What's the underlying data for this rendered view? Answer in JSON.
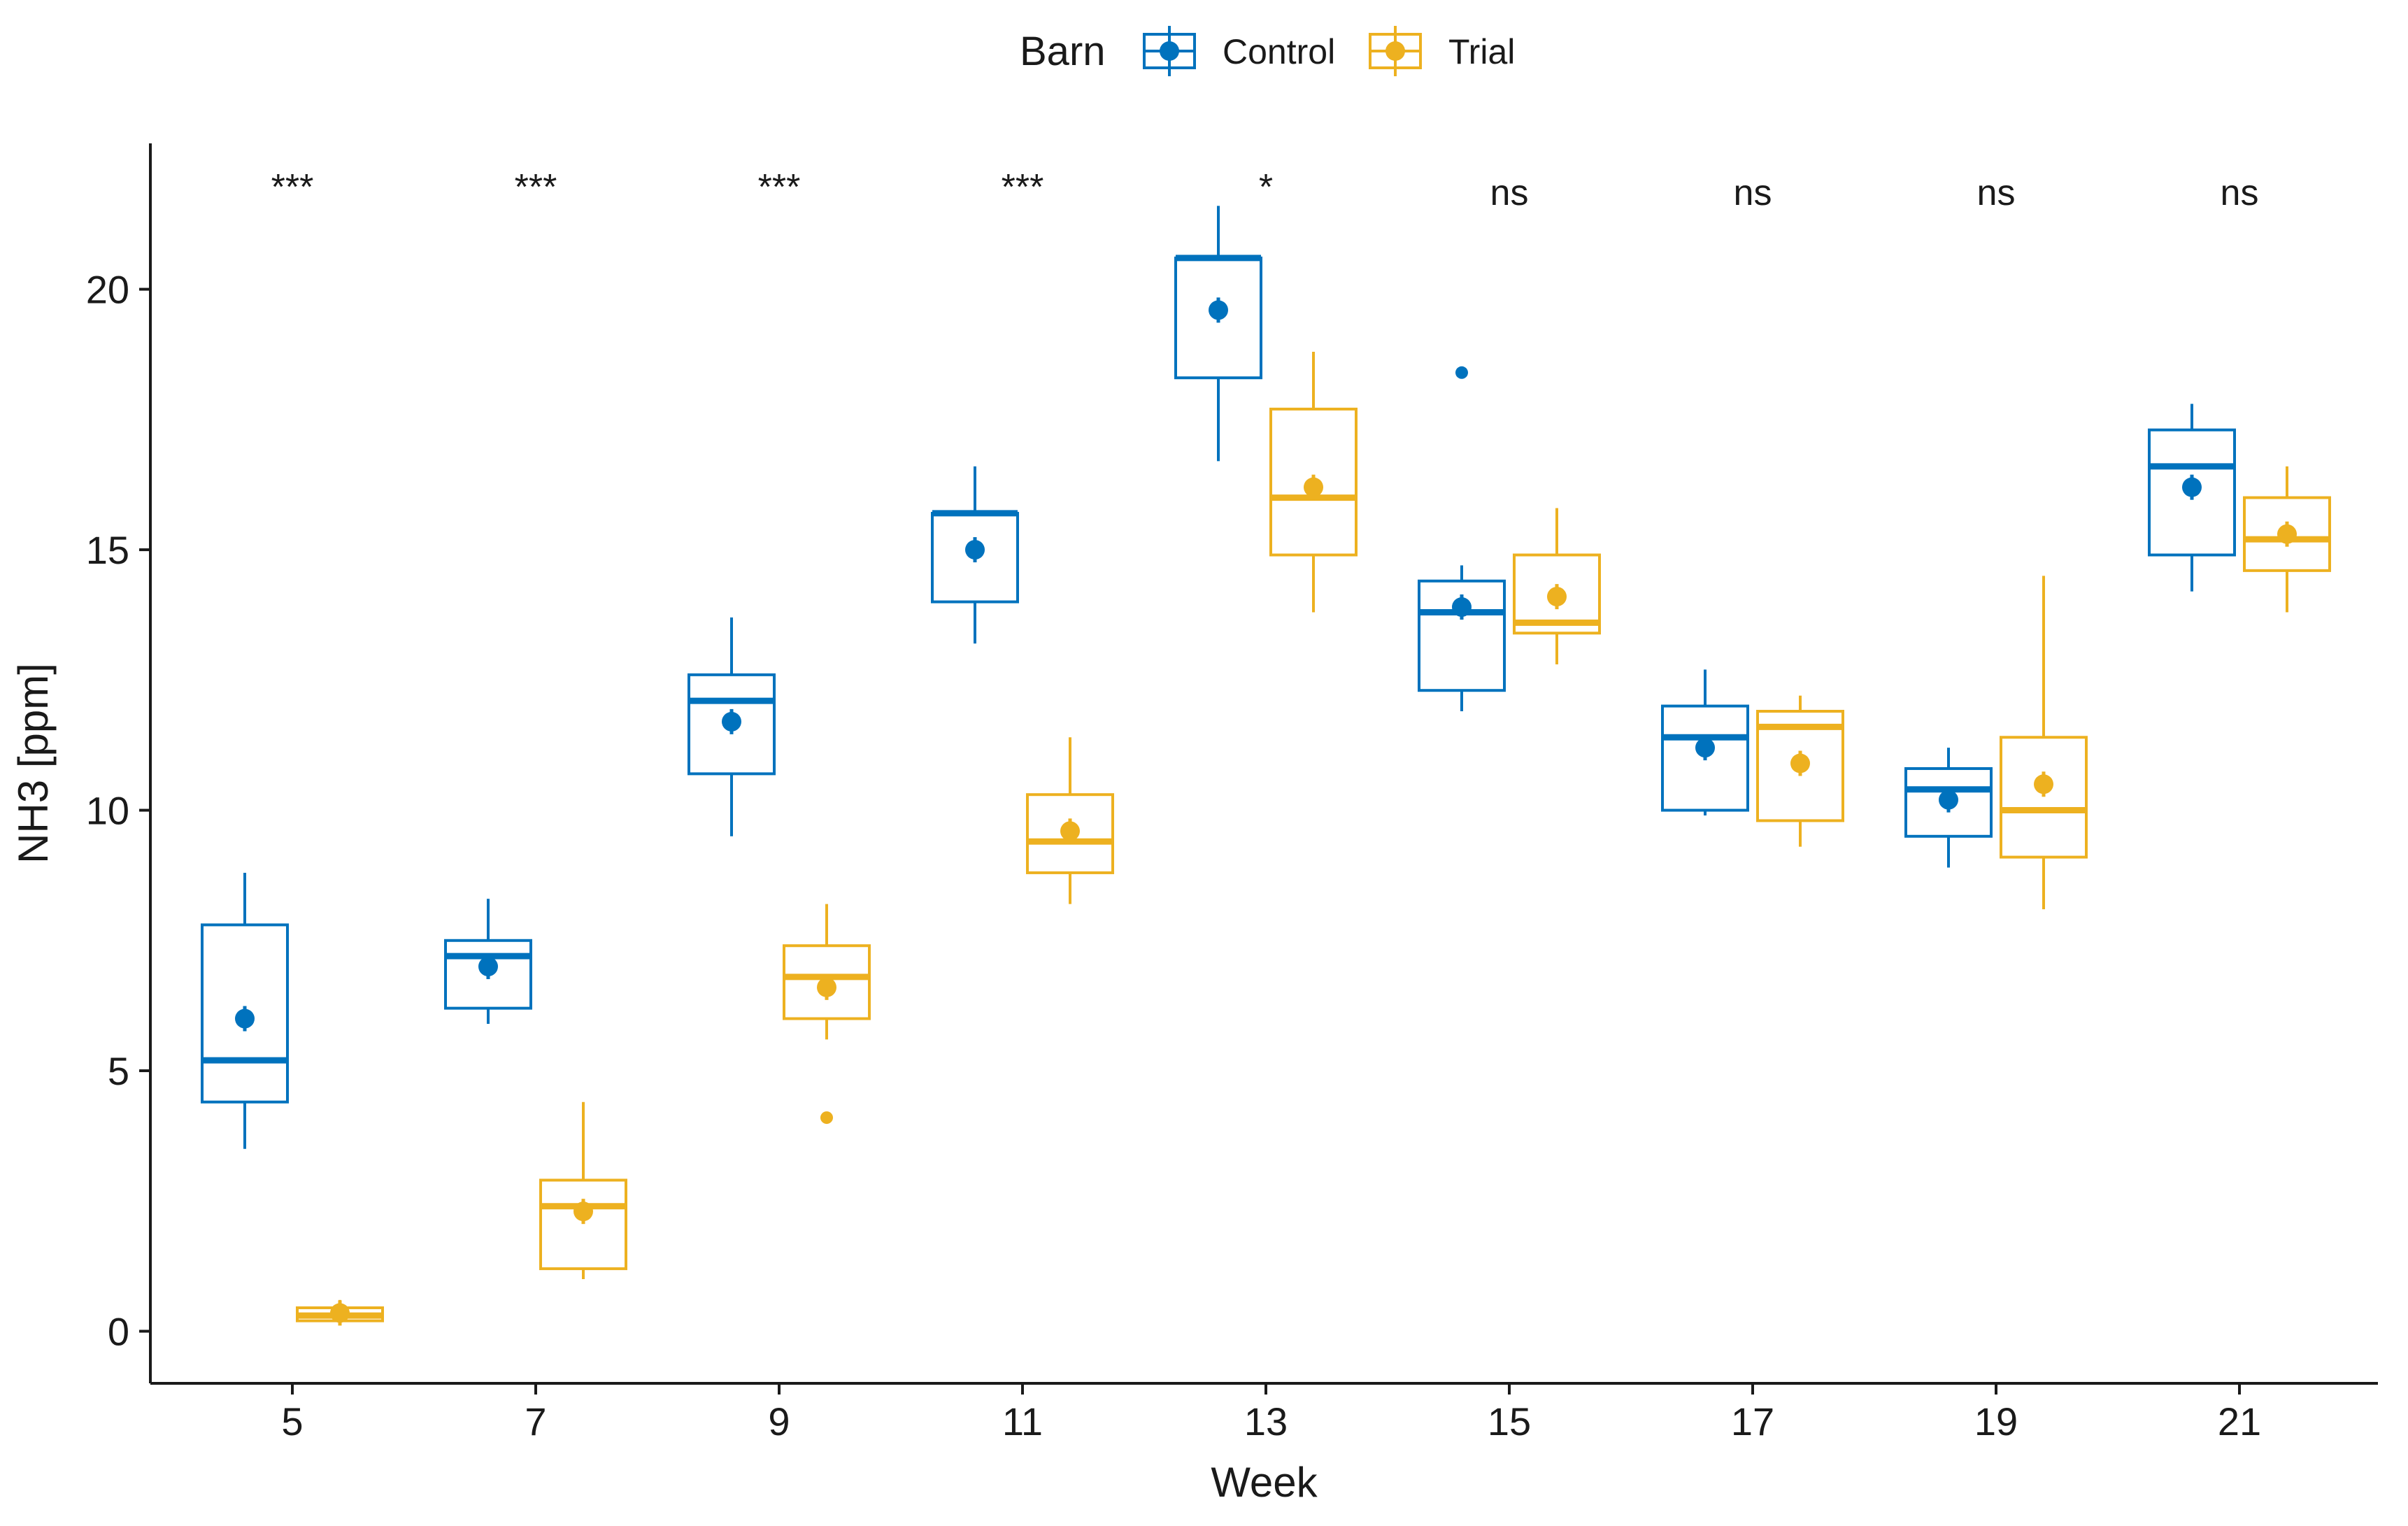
{
  "chart_data": {
    "type": "boxplot",
    "title": "",
    "xlabel": "Week",
    "ylabel": "NH3 [ppm]",
    "ylim": [
      -1,
      22.8
    ],
    "yticks": [
      0,
      5,
      10,
      15,
      20
    ],
    "categories": [
      "5",
      "7",
      "9",
      "11",
      "13",
      "15",
      "17",
      "19",
      "21"
    ],
    "legend": {
      "title": "Barn",
      "position": "top",
      "entries": [
        "Control",
        "Trial"
      ]
    },
    "series": [
      {
        "name": "Control",
        "color": "#0072BD",
        "boxes": [
          {
            "whisker_low": 3.5,
            "q1": 4.4,
            "median": 5.2,
            "q3": 7.8,
            "whisker_high": 8.8,
            "mean": 6.0,
            "outliers": []
          },
          {
            "whisker_low": 5.9,
            "q1": 6.2,
            "median": 7.2,
            "q3": 7.5,
            "whisker_high": 8.3,
            "mean": 7.0,
            "outliers": []
          },
          {
            "whisker_low": 9.5,
            "q1": 10.7,
            "median": 12.1,
            "q3": 12.6,
            "whisker_high": 13.7,
            "mean": 11.7,
            "outliers": []
          },
          {
            "whisker_low": 13.2,
            "q1": 14.0,
            "median": 15.7,
            "q3": 15.7,
            "whisker_high": 16.6,
            "mean": 15.0,
            "outliers": []
          },
          {
            "whisker_low": 16.7,
            "q1": 18.3,
            "median": 20.6,
            "q3": 20.6,
            "whisker_high": 21.6,
            "mean": 19.6,
            "outliers": []
          },
          {
            "whisker_low": 11.9,
            "q1": 12.3,
            "median": 13.8,
            "q3": 14.4,
            "whisker_high": 14.7,
            "mean": 13.9,
            "outliers": [
              18.4
            ]
          },
          {
            "whisker_low": 9.9,
            "q1": 10.0,
            "median": 11.4,
            "q3": 12.0,
            "whisker_high": 12.7,
            "mean": 11.2,
            "outliers": []
          },
          {
            "whisker_low": 8.9,
            "q1": 9.5,
            "median": 10.4,
            "q3": 10.8,
            "whisker_high": 11.2,
            "mean": 10.2,
            "outliers": []
          },
          {
            "whisker_low": 14.2,
            "q1": 14.9,
            "median": 16.6,
            "q3": 17.3,
            "whisker_high": 17.8,
            "mean": 16.2,
            "outliers": []
          }
        ]
      },
      {
        "name": "Trial",
        "color": "#EDB120",
        "boxes": [
          {
            "whisker_low": 0.2,
            "q1": 0.2,
            "median": 0.3,
            "q3": 0.45,
            "whisker_high": 0.6,
            "mean": 0.35,
            "outliers": []
          },
          {
            "whisker_low": 1.0,
            "q1": 1.2,
            "median": 2.4,
            "q3": 2.9,
            "whisker_high": 4.4,
            "mean": 2.3,
            "outliers": []
          },
          {
            "whisker_low": 5.6,
            "q1": 6.0,
            "median": 6.8,
            "q3": 7.4,
            "whisker_high": 8.2,
            "mean": 6.6,
            "outliers": [
              4.1
            ]
          },
          {
            "whisker_low": 8.2,
            "q1": 8.8,
            "median": 9.4,
            "q3": 10.3,
            "whisker_high": 11.4,
            "mean": 9.6,
            "outliers": []
          },
          {
            "whisker_low": 13.8,
            "q1": 14.9,
            "median": 16.0,
            "q3": 17.7,
            "whisker_high": 18.8,
            "mean": 16.2,
            "outliers": []
          },
          {
            "whisker_low": 12.8,
            "q1": 13.4,
            "median": 13.6,
            "q3": 14.9,
            "whisker_high": 15.8,
            "mean": 14.1,
            "outliers": []
          },
          {
            "whisker_low": 9.3,
            "q1": 9.8,
            "median": 11.6,
            "q3": 11.9,
            "whisker_high": 12.2,
            "mean": 10.9,
            "outliers": []
          },
          {
            "whisker_low": 8.1,
            "q1": 9.1,
            "median": 10.0,
            "q3": 11.4,
            "whisker_high": 14.5,
            "mean": 10.5,
            "outliers": []
          },
          {
            "whisker_low": 13.8,
            "q1": 14.6,
            "median": 15.2,
            "q3": 16.0,
            "whisker_high": 16.6,
            "mean": 15.3,
            "outliers": []
          }
        ]
      }
    ],
    "annotations": [
      "***",
      "***",
      "***",
      "***",
      "*",
      "ns",
      "ns",
      "ns",
      "ns"
    ]
  }
}
